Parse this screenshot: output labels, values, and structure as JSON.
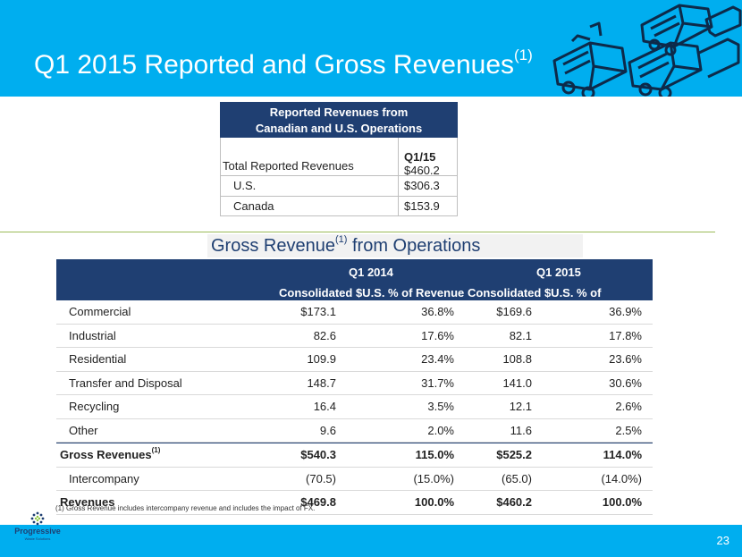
{
  "title": {
    "main": "Q1 2015 Reported and Gross Revenues",
    "sup": "(1)"
  },
  "reported": {
    "header_line1": "Reported Revenues from",
    "header_line2": "Canadian and U.S. Operations",
    "period": "Q1/15",
    "rows": [
      {
        "label": "Total Reported Revenues",
        "value": "$460.2"
      },
      {
        "label": "U.S.",
        "value": "$306.3"
      },
      {
        "label": "Canada",
        "value": "$153.9"
      }
    ]
  },
  "gross": {
    "title": "Gross Revenue",
    "title_sup": "(1)",
    "title_rest": " from Operations",
    "period1": "Q1 2014",
    "period2": "Q1 2015",
    "col_consolidated": "Consolidated $U.S.",
    "col_pct": "% of  Revenue",
    "rows": [
      {
        "label": "Commercial",
        "c1": "$173.1",
        "c2": "36.8%",
        "c3": "$169.6",
        "c4": "36.9%"
      },
      {
        "label": "Industrial",
        "c1": "82.6",
        "c2": "17.6%",
        "c3": "82.1",
        "c4": "17.8%"
      },
      {
        "label": "Residential",
        "c1": "109.9",
        "c2": "23.4%",
        "c3": "108.8",
        "c4": "23.6%"
      },
      {
        "label": "Transfer and Disposal",
        "c1": "148.7",
        "c2": "31.7%",
        "c3": "141.0",
        "c4": "30.6%"
      },
      {
        "label": "Recycling",
        "c1": "16.4",
        "c2": "3.5%",
        "c3": "12.1",
        "c4": "2.6%"
      },
      {
        "label": "Other",
        "c1": "9.6",
        "c2": "2.0%",
        "c3": "11.6",
        "c4": "2.5%"
      }
    ],
    "gross_row": {
      "label": "Gross Revenues",
      "sup": "(1)",
      "c1": "$540.3",
      "c2": "115.0%",
      "c3": "$525.2",
      "c4": "114.0%"
    },
    "interco_row": {
      "label": "Intercompany",
      "c1": "(70.5)",
      "c2": "(15.0%)",
      "c3": "(65.0)",
      "c4": "(14.0%)"
    },
    "revenue_row": {
      "label": "Revenues",
      "c1": "$469.8",
      "c2": "100.0%",
      "c3": "$460.2",
      "c4": "100.0%"
    }
  },
  "footnote": "(1) Gross Revenue includes intercompany revenue and includes the impact of FX.",
  "page_number": "23",
  "logo": {
    "name": "Progressive",
    "tagline": "Waste Solutions"
  },
  "colors": {
    "band": "#00aeef",
    "navy": "#1f3f72",
    "divider": "#9bbb59"
  }
}
